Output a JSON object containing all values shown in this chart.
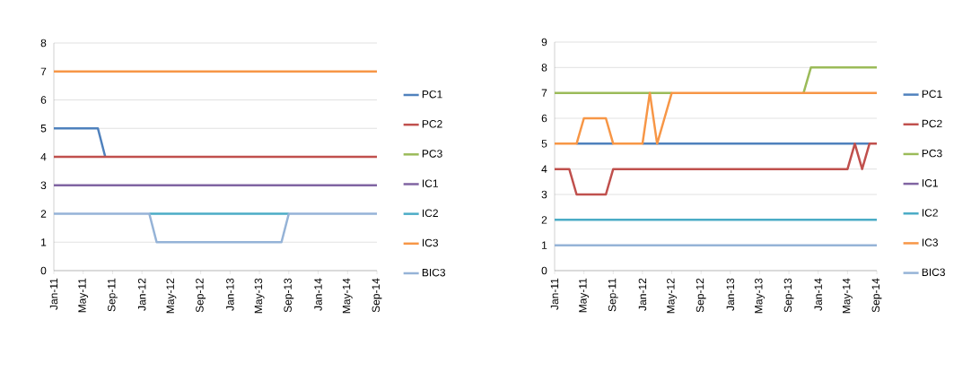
{
  "chart_data": [
    {
      "type": "line",
      "x": [
        "2011-01",
        "2011-02",
        "2011-03",
        "2011-04",
        "2011-05",
        "2011-06",
        "2011-07",
        "2011-08",
        "2011-09",
        "2011-10",
        "2011-11",
        "2011-12",
        "2012-01",
        "2012-02",
        "2012-03",
        "2012-04",
        "2012-05",
        "2012-06",
        "2012-07",
        "2012-08",
        "2012-09",
        "2012-10",
        "2012-11",
        "2012-12",
        "2013-01",
        "2013-02",
        "2013-03",
        "2013-04",
        "2013-05",
        "2013-06",
        "2013-07",
        "2013-08",
        "2013-09",
        "2013-10",
        "2013-11",
        "2013-12",
        "2014-01",
        "2014-02",
        "2014-03",
        "2014-04",
        "2014-05",
        "2014-06",
        "2014-07",
        "2014-08",
        "2014-09"
      ],
      "xlim": [
        "2011-01",
        "2014-09"
      ],
      "xticks": [
        {
          "value": "2011-01",
          "label": "Jan-11"
        },
        {
          "value": "2011-05",
          "label": "May-11"
        },
        {
          "value": "2011-09",
          "label": "Sep-11"
        },
        {
          "value": "2012-01",
          "label": "Jan-12"
        },
        {
          "value": "2012-05",
          "label": "May-12"
        },
        {
          "value": "2012-09",
          "label": "Sep-12"
        },
        {
          "value": "2013-01",
          "label": "Jan-13"
        },
        {
          "value": "2013-05",
          "label": "May-13"
        },
        {
          "value": "2013-09",
          "label": "Sep-13"
        },
        {
          "value": "2014-01",
          "label": "Jan-14"
        },
        {
          "value": "2014-05",
          "label": "May-14"
        },
        {
          "value": "2014-09",
          "label": "Sep-14"
        }
      ],
      "ylim": [
        0,
        8
      ],
      "yticks": [
        0,
        1,
        2,
        3,
        4,
        5,
        6,
        7,
        8
      ],
      "grid": "y",
      "legend": "right",
      "series": [
        {
          "name": "PC1",
          "color": "#4f81bd",
          "values": [
            5,
            5,
            5,
            5,
            5,
            5,
            5,
            4,
            null,
            null,
            null,
            null,
            null,
            null,
            null,
            null,
            null,
            null,
            null,
            null,
            null,
            null,
            null,
            null,
            null,
            null,
            null,
            null,
            null,
            null,
            null,
            null,
            null,
            null,
            null,
            null,
            null,
            null,
            null,
            null,
            null,
            null,
            null,
            null,
            null
          ]
        },
        {
          "name": "PC2",
          "color": "#c0504d",
          "values": [
            4,
            4,
            4,
            4,
            4,
            4,
            4,
            4,
            4,
            4,
            4,
            4,
            4,
            4,
            4,
            4,
            4,
            4,
            4,
            4,
            4,
            4,
            4,
            4,
            4,
            4,
            4,
            4,
            4,
            4,
            4,
            4,
            4,
            4,
            4,
            4,
            4,
            4,
            4,
            4,
            4,
            4,
            4,
            4,
            4
          ]
        },
        {
          "name": "PC3",
          "color": "#9bbb59",
          "values": [
            null,
            null,
            null,
            null,
            null,
            null,
            null,
            null,
            null,
            null,
            null,
            null,
            null,
            null,
            null,
            null,
            null,
            null,
            null,
            null,
            null,
            null,
            null,
            null,
            null,
            null,
            null,
            null,
            null,
            null,
            null,
            null,
            null,
            null,
            null,
            null,
            null,
            null,
            null,
            null,
            null,
            null,
            null,
            null,
            null
          ]
        },
        {
          "name": "IC1",
          "color": "#8064a2",
          "values": [
            3,
            3,
            3,
            3,
            3,
            3,
            3,
            3,
            3,
            3,
            3,
            3,
            3,
            3,
            3,
            3,
            3,
            3,
            3,
            3,
            3,
            3,
            3,
            3,
            3,
            3,
            3,
            3,
            3,
            3,
            3,
            3,
            3,
            3,
            3,
            3,
            3,
            3,
            3,
            3,
            3,
            3,
            3,
            3,
            3
          ]
        },
        {
          "name": "IC2",
          "color": "#4bacc6",
          "values": [
            null,
            null,
            null,
            null,
            null,
            null,
            null,
            null,
            null,
            null,
            null,
            null,
            null,
            2,
            2,
            2,
            2,
            2,
            2,
            2,
            2,
            2,
            2,
            2,
            2,
            2,
            2,
            2,
            2,
            2,
            2,
            2,
            2,
            null,
            null,
            null,
            null,
            null,
            null,
            null,
            null,
            null,
            null,
            null,
            null
          ]
        },
        {
          "name": "IC3",
          "color": "#f79646",
          "values": [
            7,
            7,
            7,
            7,
            7,
            7,
            7,
            7,
            7,
            7,
            7,
            7,
            7,
            7,
            7,
            7,
            7,
            7,
            7,
            7,
            7,
            7,
            7,
            7,
            7,
            7,
            7,
            7,
            7,
            7,
            7,
            7,
            7,
            7,
            7,
            7,
            7,
            7,
            7,
            7,
            7,
            7,
            7,
            7,
            7
          ]
        },
        {
          "name": "BIC3",
          "color": "#95b3d7",
          "values": [
            2,
            2,
            2,
            2,
            2,
            2,
            2,
            2,
            2,
            2,
            2,
            2,
            2,
            2,
            1,
            1,
            1,
            1,
            1,
            1,
            1,
            1,
            1,
            1,
            1,
            1,
            1,
            1,
            1,
            1,
            1,
            1,
            2,
            2,
            2,
            2,
            2,
            2,
            2,
            2,
            2,
            2,
            2,
            2,
            2
          ]
        }
      ]
    },
    {
      "type": "line",
      "x": [
        "2011-01",
        "2011-02",
        "2011-03",
        "2011-04",
        "2011-05",
        "2011-06",
        "2011-07",
        "2011-08",
        "2011-09",
        "2011-10",
        "2011-11",
        "2011-12",
        "2012-01",
        "2012-02",
        "2012-03",
        "2012-04",
        "2012-05",
        "2012-06",
        "2012-07",
        "2012-08",
        "2012-09",
        "2012-10",
        "2012-11",
        "2012-12",
        "2013-01",
        "2013-02",
        "2013-03",
        "2013-04",
        "2013-05",
        "2013-06",
        "2013-07",
        "2013-08",
        "2013-09",
        "2013-10",
        "2013-11",
        "2013-12",
        "2014-01",
        "2014-02",
        "2014-03",
        "2014-04",
        "2014-05",
        "2014-06",
        "2014-07",
        "2014-08",
        "2014-09"
      ],
      "xlim": [
        "2011-01",
        "2014-09"
      ],
      "xticks": [
        {
          "value": "2011-01",
          "label": "Jan-11"
        },
        {
          "value": "2011-05",
          "label": "May-11"
        },
        {
          "value": "2011-09",
          "label": "Sep-11"
        },
        {
          "value": "2012-01",
          "label": "Jan-12"
        },
        {
          "value": "2012-05",
          "label": "May-12"
        },
        {
          "value": "2012-09",
          "label": "Sep-12"
        },
        {
          "value": "2013-01",
          "label": "Jan-13"
        },
        {
          "value": "2013-05",
          "label": "May-13"
        },
        {
          "value": "2013-09",
          "label": "Sep-13"
        },
        {
          "value": "2014-01",
          "label": "Jan-14"
        },
        {
          "value": "2014-05",
          "label": "May-14"
        },
        {
          "value": "2014-09",
          "label": "Sep-14"
        }
      ],
      "ylim": [
        0,
        9
      ],
      "yticks": [
        0,
        1,
        2,
        3,
        4,
        5,
        6,
        7,
        8,
        9
      ],
      "grid": "y",
      "legend": "right",
      "series": [
        {
          "name": "PC1",
          "color": "#4f81bd",
          "values": [
            null,
            null,
            null,
            5,
            5,
            5,
            5,
            5,
            5,
            null,
            null,
            null,
            5,
            5,
            5,
            5,
            5,
            5,
            5,
            5,
            5,
            5,
            5,
            5,
            5,
            5,
            5,
            5,
            5,
            5,
            5,
            5,
            5,
            5,
            5,
            5,
            5,
            5,
            5,
            5,
            5,
            5,
            5,
            5,
            null
          ]
        },
        {
          "name": "PC2",
          "color": "#c0504d",
          "values": [
            4,
            4,
            4,
            3,
            3,
            3,
            3,
            3,
            4,
            4,
            4,
            4,
            4,
            4,
            4,
            4,
            4,
            4,
            4,
            4,
            4,
            4,
            4,
            4,
            4,
            4,
            4,
            4,
            4,
            4,
            4,
            4,
            4,
            4,
            4,
            4,
            4,
            4,
            4,
            4,
            4,
            5,
            4,
            5,
            5
          ]
        },
        {
          "name": "PC3",
          "color": "#9bbb59",
          "values": [
            7,
            7,
            7,
            7,
            7,
            7,
            7,
            7,
            7,
            7,
            7,
            7,
            7,
            7,
            7,
            7,
            7,
            null,
            null,
            null,
            null,
            null,
            null,
            null,
            null,
            null,
            null,
            null,
            null,
            null,
            null,
            null,
            null,
            null,
            7,
            8,
            8,
            8,
            8,
            8,
            8,
            8,
            8,
            8,
            8
          ]
        },
        {
          "name": "IC1",
          "color": "#8064a2",
          "values": [
            null,
            null,
            null,
            null,
            null,
            null,
            null,
            null,
            null,
            null,
            null,
            null,
            null,
            null,
            null,
            null,
            null,
            null,
            null,
            null,
            null,
            null,
            null,
            null,
            null,
            null,
            null,
            null,
            null,
            null,
            null,
            null,
            null,
            null,
            null,
            null,
            null,
            null,
            null,
            null,
            null,
            null,
            null,
            null,
            null
          ]
        },
        {
          "name": "IC2",
          "color": "#4bacc6",
          "values": [
            2,
            2,
            2,
            2,
            2,
            2,
            2,
            2,
            2,
            2,
            2,
            2,
            2,
            2,
            2,
            2,
            2,
            2,
            2,
            2,
            2,
            2,
            2,
            2,
            2,
            2,
            2,
            2,
            2,
            2,
            2,
            2,
            2,
            2,
            2,
            2,
            2,
            2,
            2,
            2,
            2,
            2,
            2,
            2,
            2
          ]
        },
        {
          "name": "IC3",
          "color": "#f79646",
          "values": [
            5,
            5,
            5,
            5,
            6,
            6,
            6,
            6,
            5,
            5,
            5,
            5,
            5,
            7,
            5,
            6,
            7,
            7,
            7,
            7,
            7,
            7,
            7,
            7,
            7,
            7,
            7,
            7,
            7,
            7,
            7,
            7,
            7,
            7,
            7,
            7,
            7,
            7,
            7,
            7,
            7,
            7,
            7,
            7,
            7
          ]
        },
        {
          "name": "BIC3",
          "color": "#95b3d7",
          "values": [
            1,
            1,
            1,
            1,
            1,
            1,
            1,
            1,
            1,
            1,
            1,
            1,
            1,
            1,
            1,
            1,
            1,
            1,
            1,
            1,
            1,
            1,
            1,
            1,
            1,
            1,
            1,
            1,
            1,
            1,
            1,
            1,
            1,
            1,
            1,
            1,
            1,
            1,
            1,
            1,
            1,
            1,
            1,
            1,
            1
          ]
        }
      ]
    }
  ]
}
